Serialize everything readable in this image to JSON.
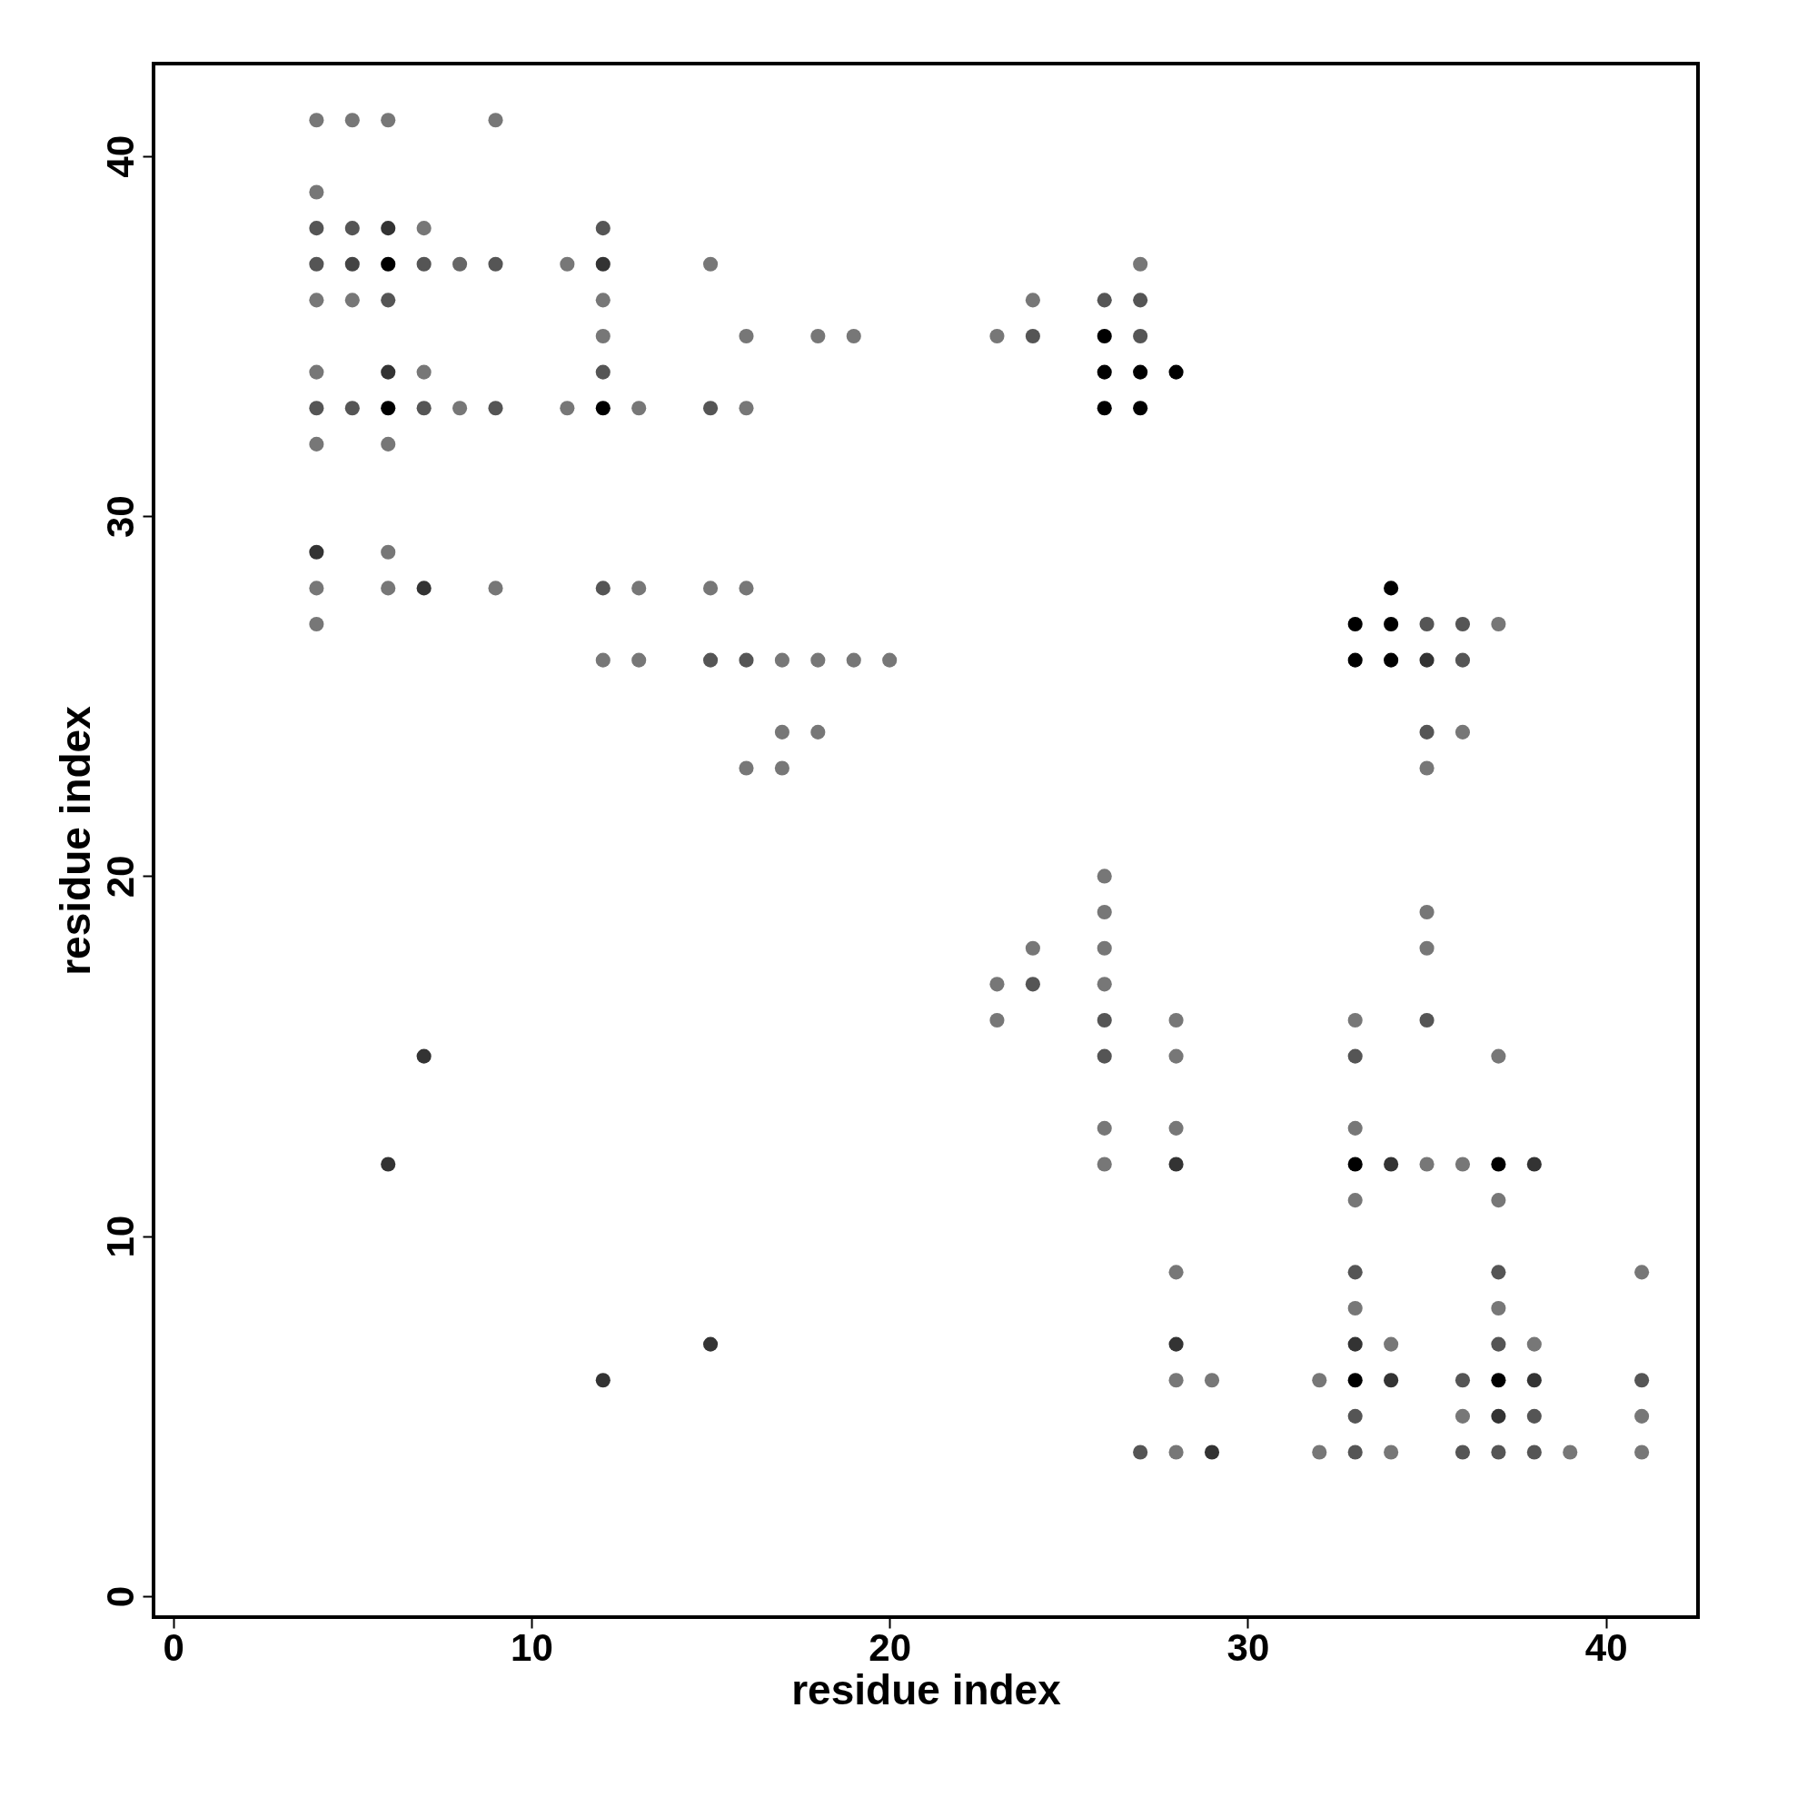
{
  "chart_data": {
    "type": "scatter",
    "xlabel": "residue index",
    "ylabel": "residue index",
    "xlim": [
      -0.55,
      42.57
    ],
    "ylim": [
      -0.58,
      42.57
    ],
    "xticks": [
      0,
      10,
      20,
      30,
      40
    ],
    "yticks": [
      0,
      10,
      20,
      30,
      40
    ],
    "grid": false,
    "marker": "circle",
    "x": [
      4,
      5,
      6,
      9,
      4,
      4,
      5,
      6,
      7,
      12,
      4,
      5,
      6,
      7,
      8,
      9,
      11,
      12,
      15,
      27,
      4,
      5,
      6,
      12,
      24,
      26,
      27,
      12,
      16,
      18,
      19,
      23,
      24,
      26,
      27,
      4,
      6,
      7,
      12,
      26,
      27,
      28,
      4,
      5,
      6,
      7,
      8,
      9,
      11,
      12,
      13,
      15,
      16,
      26,
      27,
      4,
      6,
      4,
      6,
      4,
      6,
      7,
      9,
      12,
      13,
      15,
      16,
      34,
      4,
      33,
      34,
      35,
      36,
      37,
      12,
      13,
      15,
      16,
      17,
      18,
      19,
      20,
      33,
      34,
      35,
      36,
      17,
      18,
      35,
      36,
      16,
      17,
      35,
      26,
      26,
      35,
      24,
      26,
      35,
      23,
      24,
      26,
      23,
      26,
      28,
      33,
      35,
      7,
      26,
      28,
      33,
      37,
      26,
      28,
      33,
      6,
      26,
      28,
      33,
      34,
      35,
      36,
      37,
      38,
      33,
      37,
      28,
      33,
      37,
      41,
      33,
      37,
      15,
      28,
      33,
      34,
      37,
      38,
      12,
      28,
      29,
      32,
      33,
      34,
      36,
      37,
      38,
      41,
      33,
      36,
      37,
      38,
      41,
      27,
      28,
      29,
      32,
      33,
      34,
      36,
      37,
      38,
      39,
      41
    ],
    "values": [
      41,
      41,
      41,
      41,
      39,
      38,
      38,
      38,
      38,
      38,
      37,
      37,
      37,
      37,
      37,
      37,
      37,
      37,
      37,
      37,
      36,
      36,
      36,
      36,
      36,
      36,
      36,
      35,
      35,
      35,
      35,
      35,
      35,
      35,
      35,
      34,
      34,
      34,
      34,
      34,
      34,
      34,
      33,
      33,
      33,
      33,
      33,
      33,
      33,
      33,
      33,
      33,
      33,
      33,
      33,
      32,
      32,
      29,
      29,
      28,
      28,
      28,
      28,
      28,
      28,
      28,
      28,
      28,
      27,
      27,
      27,
      27,
      27,
      27,
      26,
      26,
      26,
      26,
      26,
      26,
      26,
      26,
      26,
      26,
      26,
      26,
      24,
      24,
      24,
      24,
      23,
      23,
      23,
      20,
      19,
      19,
      18,
      18,
      18,
      17,
      17,
      17,
      16,
      16,
      16,
      16,
      16,
      15,
      15,
      15,
      15,
      15,
      13,
      13,
      13,
      12,
      12,
      12,
      12,
      12,
      12,
      12,
      12,
      12,
      11,
      11,
      9,
      9,
      9,
      9,
      8,
      8,
      7,
      7,
      7,
      7,
      7,
      7,
      6,
      6,
      6,
      6,
      6,
      6,
      6,
      6,
      6,
      6,
      5,
      5,
      5,
      5,
      5,
      4,
      4,
      4,
      4,
      4,
      4,
      4,
      4,
      4,
      4,
      4
    ],
    "colors": [
      "#777777",
      "#777777",
      "#777777",
      "#777777",
      "#777777",
      "#555555",
      "#555555",
      "#333333",
      "#777777",
      "#555555",
      "#555555",
      "#444444",
      "#000000",
      "#555555",
      "#666666",
      "#555555",
      "#777777",
      "#333333",
      "#777777",
      "#777777",
      "#777777",
      "#777777",
      "#555555",
      "#777777",
      "#777777",
      "#555555",
      "#555555",
      "#777777",
      "#777777",
      "#777777",
      "#777777",
      "#777777",
      "#555555",
      "#000000",
      "#555555",
      "#777777",
      "#333333",
      "#777777",
      "#555555",
      "#000000",
      "#000000",
      "#000000",
      "#555555",
      "#555555",
      "#000000",
      "#555555",
      "#777777",
      "#555555",
      "#777777",
      "#000000",
      "#777777",
      "#555555",
      "#777777",
      "#000000",
      "#000000",
      "#777777",
      "#777777",
      "#333333",
      "#777777",
      "#777777",
      "#777777",
      "#333333",
      "#777777",
      "#555555",
      "#777777",
      "#777777",
      "#777777",
      "#000000",
      "#777777",
      "#000000",
      "#000000",
      "#555555",
      "#555555",
      "#777777",
      "#777777",
      "#777777",
      "#555555",
      "#555555",
      "#777777",
      "#777777",
      "#777777",
      "#777777",
      "#000000",
      "#000000",
      "#333333",
      "#555555",
      "#777777",
      "#777777",
      "#555555",
      "#777777",
      "#777777",
      "#777777",
      "#777777",
      "#777777",
      "#777777",
      "#777777",
      "#777777",
      "#777777",
      "#777777",
      "#777777",
      "#555555",
      "#777777",
      "#777777",
      "#555555",
      "#777777",
      "#777777",
      "#555555",
      "#333333",
      "#555555",
      "#777777",
      "#555555",
      "#777777",
      "#777777",
      "#777777",
      "#777777",
      "#333333",
      "#777777",
      "#333333",
      "#000000",
      "#333333",
      "#777777",
      "#777777",
      "#000000",
      "#333333",
      "#777777",
      "#777777",
      "#777777",
      "#555555",
      "#555555",
      "#777777",
      "#777777",
      "#777777",
      "#333333",
      "#333333",
      "#333333",
      "#777777",
      "#555555",
      "#777777",
      "#333333",
      "#777777",
      "#777777",
      "#777777",
      "#000000",
      "#333333",
      "#555555",
      "#000000",
      "#333333",
      "#555555",
      "#555555",
      "#777777",
      "#333333",
      "#555555",
      "#777777",
      "#555555",
      "#777777",
      "#333333",
      "#777777",
      "#555555",
      "#777777",
      "#555555",
      "#555555",
      "#555555",
      "#777777",
      "#777777"
    ]
  }
}
